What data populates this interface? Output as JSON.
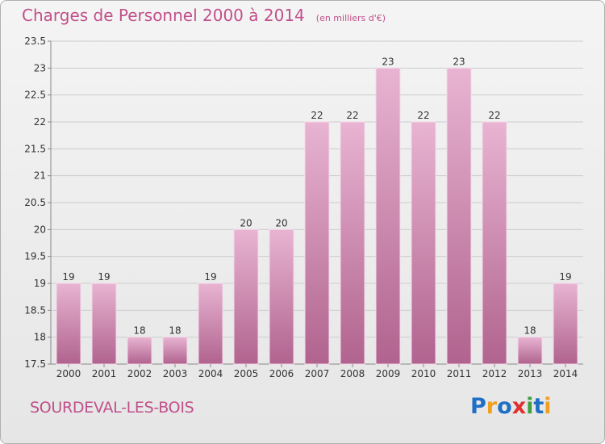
{
  "header": {
    "title": "Charges de Personnel 2000 à 2014",
    "unit": "(en milliers d'€)"
  },
  "footer": {
    "place": "SOURDEVAL-LES-BOIS",
    "brand": "Proxiti",
    "brand_colors": [
      "#1f6fc4",
      "#f0a020",
      "#1f6fc4",
      "#e03030",
      "#40a040",
      "#1f6fc4",
      "#f0a020"
    ]
  },
  "colors": {
    "bar_light": "#e8b4d2",
    "bar_dark": "#b0638e",
    "grid": "#cccccc",
    "axis_text": "#333333"
  },
  "chart_data": {
    "type": "bar",
    "title": "Charges de Personnel 2000 à 2014",
    "subtitle": "(en milliers d'€)",
    "xlabel": "",
    "ylabel": "",
    "categories": [
      "2000",
      "2001",
      "2002",
      "2003",
      "2004",
      "2005",
      "2006",
      "2007",
      "2008",
      "2009",
      "2010",
      "2011",
      "2012",
      "2013",
      "2014"
    ],
    "values": [
      19,
      19,
      18,
      18,
      19,
      20,
      20,
      22,
      22,
      23,
      22,
      23,
      22,
      18,
      19
    ],
    "ylim": [
      17.5,
      23.5
    ],
    "yticks": [
      "17.5",
      "18",
      "18.5",
      "19",
      "19.5",
      "20",
      "20.5",
      "21",
      "21.5",
      "22",
      "22.5",
      "23",
      "23.5"
    ],
    "grid": true,
    "legend": "none"
  }
}
